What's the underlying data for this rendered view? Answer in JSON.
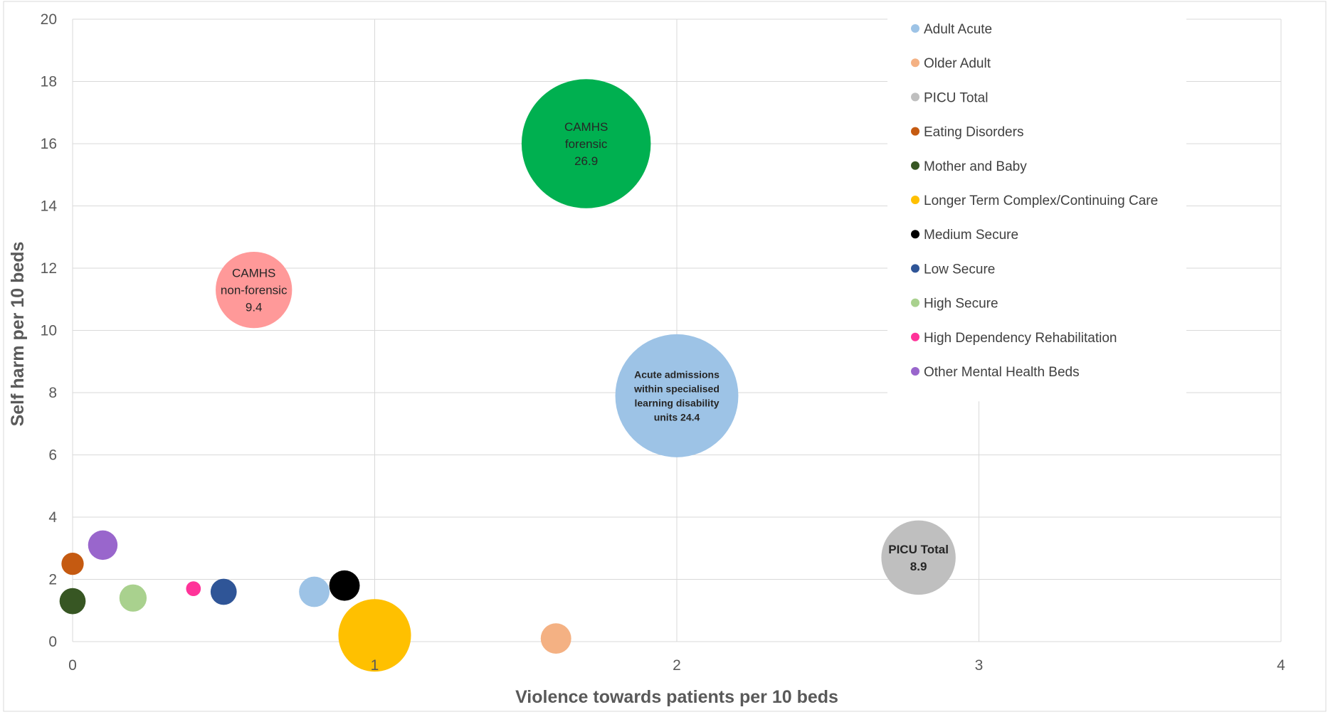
{
  "chart_data": {
    "type": "scatter",
    "subtype": "bubble",
    "xlabel": "Violence towards patients per 10 beds",
    "ylabel": "Self harm per 10 beds",
    "xlim": [
      0,
      4
    ],
    "ylim": [
      0,
      20
    ],
    "x_ticks": [
      "0",
      "1",
      "2",
      "3",
      "4"
    ],
    "y_ticks": [
      "0",
      "2",
      "4",
      "6",
      "8",
      "10",
      "12",
      "14",
      "16",
      "18",
      "20"
    ],
    "grid": true,
    "legend_position": "top-right",
    "series": [
      {
        "name": "Adult Acute",
        "color": "#9dc3e6",
        "points": [
          {
            "x": 0.8,
            "y": 1.6,
            "size": 1.5
          },
          {
            "x": 2.0,
            "y": 7.9,
            "size": 24.4,
            "label": [
              "Acute admissions",
              "within specialised",
              "learning disability",
              "units  24.4"
            ]
          }
        ]
      },
      {
        "name": "Older Adult",
        "color": "#f4b183",
        "points": [
          {
            "x": 1.6,
            "y": 0.1,
            "size": 1.5
          }
        ]
      },
      {
        "name": "PICU Total",
        "color": "#bfbfbf",
        "points": [
          {
            "x": 2.8,
            "y": 2.7,
            "size": 8.9,
            "label": [
              "PICU Total",
              "8.9"
            ]
          }
        ]
      },
      {
        "name": "Eating Disorders",
        "color": "#c55a11",
        "points": [
          {
            "x": 0.0,
            "y": 2.5,
            "size": 0.8
          }
        ]
      },
      {
        "name": "Mother and Baby",
        "color": "#375623",
        "points": [
          {
            "x": 0.0,
            "y": 1.3,
            "size": 1.1
          }
        ]
      },
      {
        "name": "Longer Term Complex/Continuing Care",
        "color": "#ffc000",
        "points": [
          {
            "x": 1.0,
            "y": 0.2,
            "size": 8.5
          }
        ]
      },
      {
        "name": "Medium Secure",
        "color": "#000000",
        "points": [
          {
            "x": 0.9,
            "y": 1.8,
            "size": 1.5
          }
        ]
      },
      {
        "name": "Low Secure",
        "color": "#2f5597",
        "points": [
          {
            "x": 0.5,
            "y": 1.6,
            "size": 1.1
          }
        ]
      },
      {
        "name": "High Secure",
        "color": "#a9d18e",
        "points": [
          {
            "x": 0.2,
            "y": 1.4,
            "size": 1.2
          }
        ]
      },
      {
        "name": "High Dependency Rehabilitation",
        "color": "#ff3399",
        "points": [
          {
            "x": 0.4,
            "y": 1.7,
            "size": 0.35
          }
        ]
      },
      {
        "name": "Other Mental Health Beds",
        "color": "#9966cc",
        "points": [
          {
            "x": 0.1,
            "y": 3.1,
            "size": 1.4
          }
        ]
      },
      {
        "name": "",
        "color": "#ff9999",
        "points": [
          {
            "x": 0.6,
            "y": 11.3,
            "size": 9.4,
            "label": [
              "CAMHS",
              "non-forensic",
              "9.4"
            ]
          }
        ]
      },
      {
        "name": "",
        "color": "#00b050",
        "points": [
          {
            "x": 1.7,
            "y": 16.0,
            "size": 26.9,
            "label": [
              "CAMHS",
              "forensic",
              "26.9"
            ]
          }
        ]
      }
    ]
  }
}
